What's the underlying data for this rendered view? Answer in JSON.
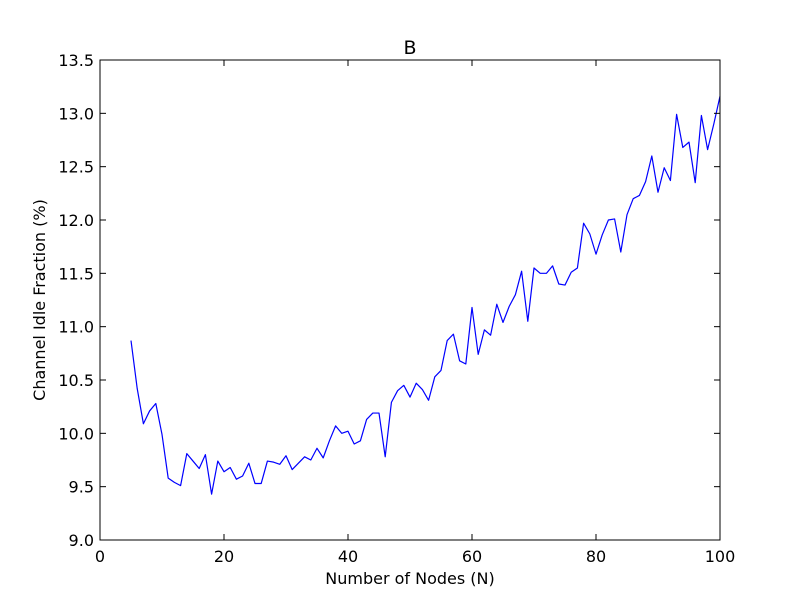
{
  "chart_data": {
    "type": "line",
    "title": "B",
    "xlabel": "Number of Nodes (N)",
    "ylabel": "Channel Idle Fraction (%)",
    "xlim": [
      0,
      100
    ],
    "ylim": [
      9.0,
      13.5
    ],
    "xticks": [
      0,
      20,
      40,
      60,
      80,
      100
    ],
    "xtick_labels": [
      "0",
      "20",
      "40",
      "60",
      "80",
      "100"
    ],
    "yticks": [
      9.0,
      9.5,
      10.0,
      10.5,
      11.0,
      11.5,
      12.0,
      12.5,
      13.0,
      13.5
    ],
    "ytick_labels": [
      "9.0",
      "9.5",
      "10.0",
      "10.5",
      "11.0",
      "11.5",
      "12.0",
      "12.5",
      "13.0",
      "13.5"
    ],
    "grid": false,
    "legend": "none",
    "line_color": "#0000ff",
    "series": [
      {
        "x": [
          5,
          6,
          7,
          8,
          9,
          10,
          11,
          12,
          13,
          14,
          15,
          16,
          17,
          18,
          19,
          20,
          21,
          22,
          23,
          24,
          25,
          26,
          27,
          28,
          29,
          30,
          31,
          32,
          33,
          34,
          35,
          36,
          37,
          38,
          39,
          40,
          41,
          42,
          43,
          44,
          45,
          46,
          47,
          48,
          49,
          50,
          51,
          52,
          53,
          54,
          55,
          56,
          57,
          58,
          59,
          60,
          61,
          62,
          63,
          64,
          65,
          66,
          67,
          68,
          69,
          70,
          71,
          72,
          73,
          74,
          75,
          76,
          77,
          78,
          79,
          80,
          81,
          82,
          83,
          84,
          85,
          86,
          87,
          88,
          89,
          90,
          91,
          92,
          93,
          94,
          95,
          96,
          97,
          98,
          99,
          100
        ],
        "y": [
          10.87,
          10.42,
          10.09,
          10.21,
          10.28,
          9.99,
          9.58,
          9.54,
          9.51,
          9.81,
          9.74,
          9.67,
          9.8,
          9.43,
          9.74,
          9.64,
          9.68,
          9.57,
          9.6,
          9.72,
          9.53,
          9.53,
          9.74,
          9.73,
          9.71,
          9.79,
          9.66,
          9.72,
          9.78,
          9.75,
          9.86,
          9.77,
          9.93,
          10.07,
          10.0,
          10.02,
          9.9,
          9.93,
          10.13,
          10.19,
          10.19,
          9.78,
          10.29,
          10.4,
          10.45,
          10.34,
          10.47,
          10.41,
          10.31,
          10.53,
          10.59,
          10.87,
          10.93,
          10.68,
          10.65,
          11.18,
          10.74,
          10.97,
          10.92,
          11.21,
          11.04,
          11.19,
          11.3,
          11.52,
          11.05,
          11.55,
          11.5,
          11.5,
          11.57,
          11.4,
          11.39,
          11.51,
          11.55,
          11.97,
          11.87,
          11.68,
          11.86,
          12.0,
          12.01,
          11.7,
          12.05,
          12.2,
          12.23,
          12.36,
          12.6,
          12.26,
          12.49,
          12.37,
          12.99,
          12.68,
          12.73,
          12.35,
          12.98,
          12.66,
          12.9,
          13.16
        ]
      }
    ]
  }
}
